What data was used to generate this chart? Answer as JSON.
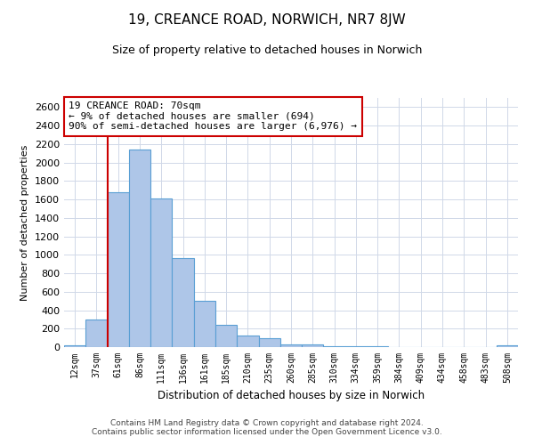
{
  "title": "19, CREANCE ROAD, NORWICH, NR7 8JW",
  "subtitle": "Size of property relative to detached houses in Norwich",
  "xlabel": "Distribution of detached houses by size in Norwich",
  "ylabel": "Number of detached properties",
  "bar_color": "#aec6e8",
  "bar_edge_color": "#5a9fd4",
  "background_color": "#ffffff",
  "grid_color": "#d0d8e8",
  "categories": [
    "12sqm",
    "37sqm",
    "61sqm",
    "86sqm",
    "111sqm",
    "136sqm",
    "161sqm",
    "185sqm",
    "210sqm",
    "235sqm",
    "260sqm",
    "285sqm",
    "310sqm",
    "334sqm",
    "359sqm",
    "384sqm",
    "409sqm",
    "434sqm",
    "458sqm",
    "483sqm",
    "508sqm"
  ],
  "values": [
    15,
    300,
    1680,
    2140,
    1610,
    960,
    505,
    245,
    125,
    95,
    30,
    25,
    10,
    8,
    5,
    3,
    2,
    2,
    2,
    2,
    15
  ],
  "ylim": [
    0,
    2700
  ],
  "yticks": [
    0,
    200,
    400,
    600,
    800,
    1000,
    1200,
    1400,
    1600,
    1800,
    2000,
    2200,
    2400,
    2600
  ],
  "marker_bin_index": 2,
  "marker_color": "#cc0000",
  "annotation_title": "19 CREANCE ROAD: 70sqm",
  "annotation_line1": "← 9% of detached houses are smaller (694)",
  "annotation_line2": "90% of semi-detached houses are larger (6,976) →",
  "annotation_box_color": "#ffffff",
  "annotation_box_edge": "#cc0000",
  "footer_line1": "Contains HM Land Registry data © Crown copyright and database right 2024.",
  "footer_line2": "Contains public sector information licensed under the Open Government Licence v3.0."
}
